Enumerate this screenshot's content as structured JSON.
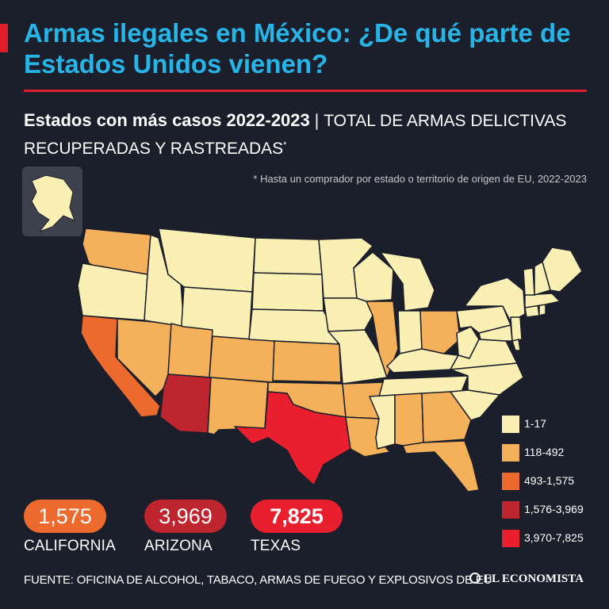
{
  "header": {
    "title": "Armas ilegales en México: ¿De qué parte de Estados Unidos vienen?",
    "subtitle_bold": "Estados con más casos 2022-2023",
    "subtitle_separator": "|",
    "subtitle_rest": "TOTAL DE ARMAS DELICTIVAS RECUPERADAS Y RASTREADAS",
    "subtitle_mark": "*",
    "note": "* Hasta un comprador por estado o territorio de origen de EU, 2022-2023"
  },
  "colors": {
    "background": "#1b1f2b",
    "title": "#27b5e8",
    "accent": "#e21d2a",
    "range_1": "#faf0b4",
    "range_2": "#f5b15a",
    "range_3": "#ec6a2e",
    "range_4": "#be252e",
    "range_5": "#e8202d",
    "state_border": "#1b1f2b"
  },
  "legend": [
    {
      "label": "1-17",
      "color": "#faf0b4"
    },
    {
      "label": "118-492",
      "color": "#f5b15a"
    },
    {
      "label": "493-1,575",
      "color": "#ec6a2e"
    },
    {
      "label": "1,576-3,969",
      "color": "#be252e"
    },
    {
      "label": "3,970-7,825",
      "color": "#e8202d"
    }
  ],
  "highlights": [
    {
      "value": "1,575",
      "state": "CALIFORNIA",
      "color": "#ec6a2e"
    },
    {
      "value": "3,969",
      "state": "ARIZONA",
      "color": "#be252e"
    },
    {
      "value": "7,825",
      "state": "TEXAS",
      "color": "#e8202d"
    }
  ],
  "footer": {
    "source": "FUENTE: OFICINA DE ALCOHOL, TABACO, ARMAS DE FUEGO Y EXPLOSIVOS DE EU",
    "brand": "EL ECONOMISTA"
  }
}
